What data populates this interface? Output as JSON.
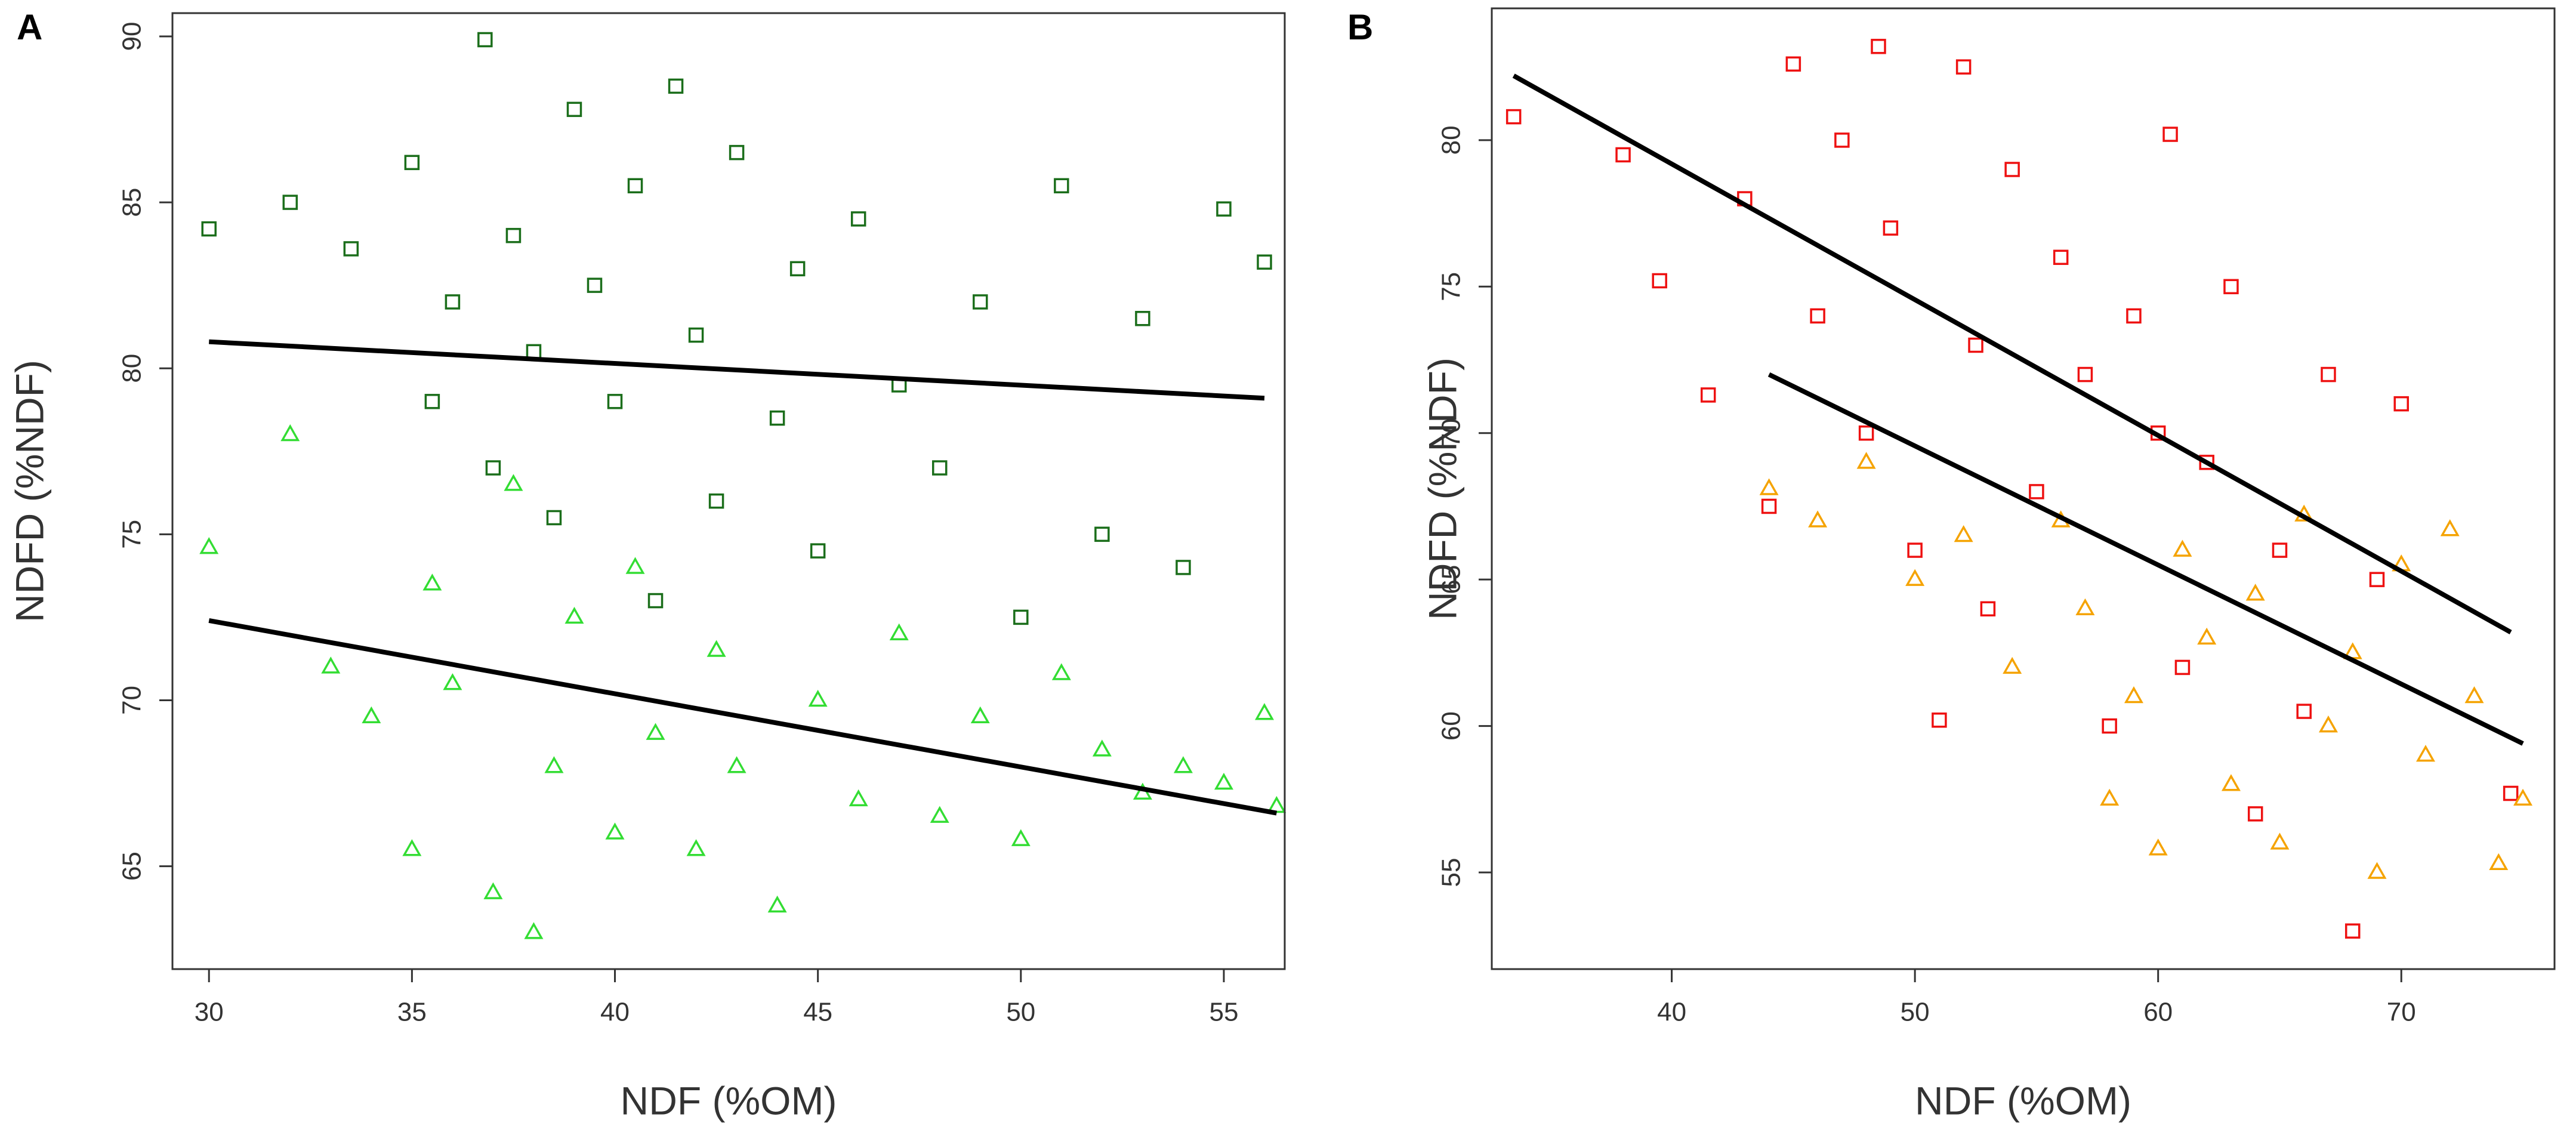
{
  "chart_data": [
    {
      "type": "scatter",
      "panel_label": "A",
      "x_label": "NDF (%OM)",
      "y_label": "NDFD (%NDF)",
      "xlim": [
        29.1,
        56.5
      ],
      "ylim": [
        61.9,
        90.7
      ],
      "xticks": [
        30,
        35,
        40,
        45,
        50,
        55
      ],
      "yticks": [
        65,
        70,
        75,
        80,
        85,
        90
      ],
      "series": [
        {
          "marker": "square",
          "color": "#1b6e1b",
          "x": [
            30,
            32,
            33.5,
            35,
            35.5,
            36,
            36.8,
            37,
            37.5,
            38,
            38.5,
            39,
            39.5,
            40,
            40.5,
            41,
            41.5,
            42,
            42.5,
            43,
            44,
            44.5,
            45,
            46,
            47,
            48,
            49,
            50,
            51,
            52,
            53,
            54,
            55,
            56
          ],
          "values": [
            84.2,
            85,
            83.6,
            86.2,
            79,
            82,
            89.9,
            77,
            84,
            80.5,
            75.5,
            87.8,
            82.5,
            79,
            85.5,
            73,
            88.5,
            81,
            76,
            86.5,
            78.5,
            83,
            74.5,
            84.5,
            79.5,
            77,
            82,
            72.5,
            85.5,
            75,
            81.5,
            74,
            84.8,
            83.2
          ]
        },
        {
          "marker": "triangle",
          "color": "#33dd33",
          "x": [
            30,
            32,
            33,
            34,
            35,
            35.5,
            36,
            37,
            37.5,
            38,
            38.5,
            39,
            40,
            40.5,
            41,
            42,
            42.5,
            43,
            44,
            45,
            46,
            47,
            48,
            49,
            50,
            51,
            52,
            53,
            54,
            55,
            56,
            56.3
          ],
          "values": [
            74.6,
            78,
            71,
            69.5,
            65.5,
            73.5,
            70.5,
            64.2,
            76.5,
            63,
            68,
            72.5,
            66,
            74,
            69,
            65.5,
            71.5,
            68,
            63.8,
            70,
            67,
            72,
            66.5,
            69.5,
            65.8,
            70.8,
            68.5,
            67.2,
            68,
            67.5,
            69.6,
            66.8
          ]
        }
      ],
      "fit_lines": [
        {
          "color": "#000000",
          "x": [
            30,
            56
          ],
          "values": [
            80.8,
            79.1
          ]
        },
        {
          "color": "#000000",
          "x": [
            30,
            56.3
          ],
          "values": [
            72.4,
            66.6
          ]
        }
      ]
    },
    {
      "type": "scatter",
      "panel_label": "B",
      "x_label": "NDF (%OM)",
      "y_label": "NDFD (%NDF)",
      "xlim": [
        32.6,
        76.3
      ],
      "ylim": [
        51.7,
        84.5
      ],
      "xticks": [
        40,
        50,
        60,
        70
      ],
      "yticks": [
        55,
        60,
        65,
        70,
        75,
        80
      ],
      "series": [
        {
          "marker": "square",
          "color": "#ee1111",
          "x": [
            33.5,
            38,
            39.5,
            41.5,
            43,
            44,
            45,
            46,
            47,
            48,
            48.5,
            49,
            50,
            51,
            52,
            52.5,
            53,
            54,
            55,
            56,
            57,
            58,
            59,
            60,
            60.5,
            61,
            62,
            63,
            64,
            65,
            66,
            67,
            68,
            69,
            70,
            74.5
          ],
          "values": [
            80.8,
            79.5,
            75.2,
            71.3,
            78,
            67.5,
            82.6,
            74,
            80,
            70,
            83.2,
            77,
            66,
            60.2,
            82.5,
            73,
            64,
            79,
            68,
            76,
            72,
            60,
            74,
            70,
            80.2,
            62,
            69,
            75,
            57,
            66,
            60.5,
            72,
            53,
            65,
            71,
            57.7
          ]
        },
        {
          "marker": "triangle",
          "color": "#f5a300",
          "x": [
            44,
            46,
            48,
            50,
            52,
            54,
            56,
            57,
            58,
            59,
            60,
            61,
            62,
            63,
            64,
            65,
            66,
            67,
            68,
            69,
            70,
            71,
            72,
            73,
            74,
            75
          ],
          "values": [
            68.1,
            67,
            69,
            65,
            66.5,
            62,
            67,
            64,
            57.5,
            61,
            55.8,
            66,
            63,
            58,
            64.5,
            56,
            67.2,
            60,
            62.5,
            55,
            65.5,
            59,
            66.7,
            61,
            55.3,
            57.5
          ]
        }
      ],
      "fit_lines": [
        {
          "color": "#000000",
          "x": [
            33.5,
            74.5
          ],
          "values": [
            82.2,
            63.2
          ]
        },
        {
          "color": "#000000",
          "x": [
            44,
            75
          ],
          "values": [
            72,
            59.4
          ]
        }
      ]
    }
  ]
}
